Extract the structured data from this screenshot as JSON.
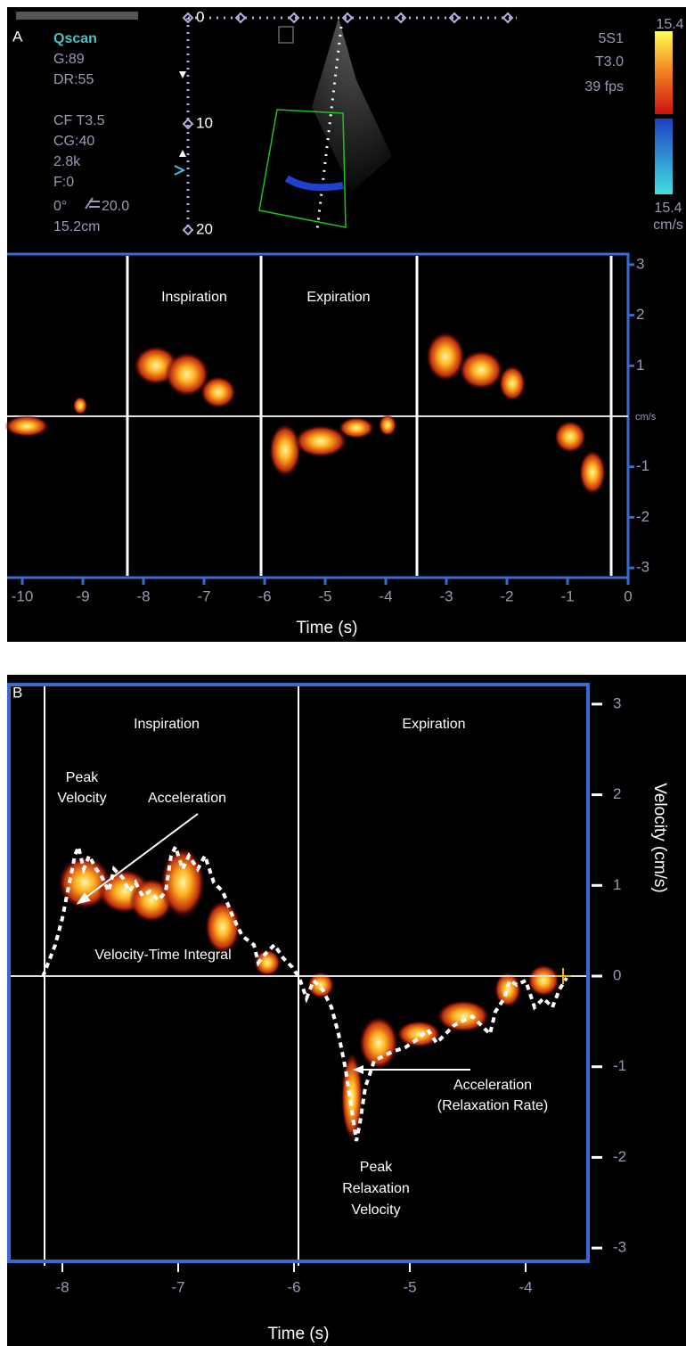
{
  "panel_a": {
    "label": "A",
    "scanner": {
      "mode": "Qscan",
      "settings": [
        "G:89",
        "DR:55",
        "CF T3.5",
        "CG:40",
        "2.8k",
        "F:0"
      ],
      "angle": "0°",
      "steer": "20.0",
      "depth": "15.2cm"
    },
    "probe": [
      "5S1",
      "T3.0",
      "39 fps"
    ],
    "color_bar": {
      "top": "15.4",
      "bottom": "15.4",
      "unit": "cm/s"
    },
    "depth_ticks": [
      0,
      10,
      20
    ],
    "doppler": {
      "phases": [
        "Inspiration",
        "Expiration"
      ],
      "yticks": [
        3,
        2,
        1,
        -1,
        -2,
        -3
      ],
      "zero_label": "cm/s",
      "xticks": [
        -10,
        -9,
        -8,
        -7,
        -6,
        -5,
        -4,
        -3,
        -2,
        -1,
        0
      ],
      "xlabel": "Time (s)"
    }
  },
  "panel_b": {
    "label": "B",
    "phases": [
      "Inspiration",
      "Expiration"
    ],
    "annotations": {
      "peak_velocity": [
        "Peak",
        "Velocity"
      ],
      "acceleration": "Acceleration",
      "vti": "Velocity-Time Integral",
      "relaxation_rate": [
        "Acceleration",
        "(Relaxation Rate)"
      ],
      "peak_relaxation": [
        "Peak",
        "Relaxation",
        "Velocity"
      ]
    },
    "yticks": [
      3,
      2,
      1,
      0,
      -1,
      -2,
      -3
    ],
    "ylabel": "Velocity (cm/s)",
    "xticks": [
      -8,
      -7,
      -6,
      -5,
      -4
    ],
    "xlabel": "Time (s)"
  }
}
